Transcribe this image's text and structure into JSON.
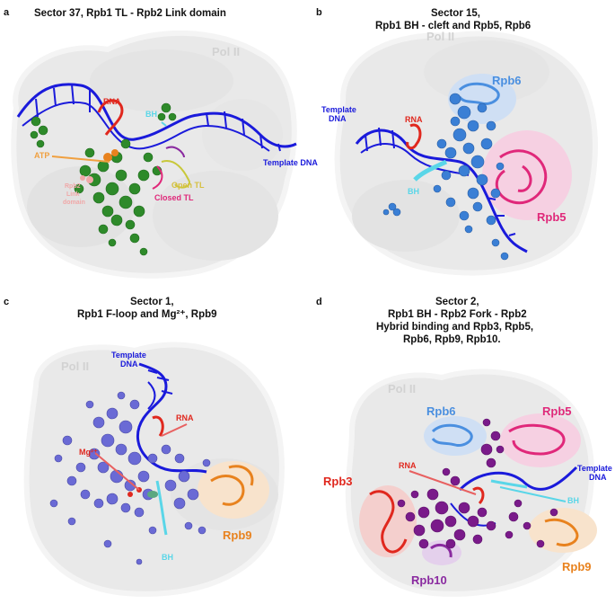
{
  "panels": {
    "a": {
      "letter": "a",
      "title": "Sector 37, Rpb1 TL - Rpb2 Link domain",
      "labels": {
        "pol2": "Pol II",
        "rna": "RNA",
        "bh": "BH",
        "atp": "ATP",
        "template_dna": "Template DNA",
        "open_tl": "Open TL",
        "closed_tl": "Closed TL",
        "link_line1": "Rpb2",
        "link_line2": "Link",
        "link_line3": "domain"
      }
    },
    "b": {
      "letter": "b",
      "title_line1": "Sector 15,",
      "title_line2": "Rpb1 BH - cleft and Rpb5, Rpb6",
      "labels": {
        "pol2": "Pol II",
        "rpb6": "Rpb6",
        "template_line1": "Template",
        "template_line2": "DNA",
        "rna": "RNA",
        "bh": "BH",
        "rpb5": "Rpb5"
      }
    },
    "c": {
      "letter": "c",
      "title_line1": "Sector 1,",
      "title_line2": "Rpb1 F-loop and Mg²⁺, Rpb9",
      "labels": {
        "pol2": "Pol II",
        "template_line1": "Template",
        "template_line2": "DNA",
        "rna": "RNA",
        "mg": "Mg²⁺",
        "bh": "BH",
        "rpb9": "Rpb9"
      }
    },
    "d": {
      "letter": "d",
      "title_line1": "Sector 2,",
      "title_line2": "Rpb1 BH - Rpb2 Fork - Rpb2",
      "title_line3": "Hybrid binding and Rpb3, Rpb5,",
      "title_line4": "Rpb6, Rpb9, Rpb10.",
      "labels": {
        "pol2": "Pol II",
        "rpb6": "Rpb6",
        "rpb5": "Rpb5",
        "rna": "RNA",
        "template_line1": "Template",
        "template_line2": "DNA",
        "rpb3": "Rpb3",
        "bh": "BH",
        "rpb10": "Rpb10",
        "rpb9": "Rpb9"
      }
    }
  },
  "colors": {
    "pol2_surface": "#e8e8e8",
    "pol2_label": "#d2d2d2",
    "dna": "#1a1adb",
    "rna": "#e0281e",
    "rpb6": "#4a8fe0",
    "rpb5": "#e0287a",
    "rpb9": "#e8821e",
    "rpb3": "#e0281e",
    "rpb10": "#8a2aa0",
    "sector_a": "#2e8a2a",
    "sector_b": "#3a7fd5",
    "sector_c": "#6a6ad5",
    "sector_d": "#7a1a8a",
    "bh": "#5ad6e8",
    "atp": "#f0a040",
    "link": "#f0a8a8"
  }
}
